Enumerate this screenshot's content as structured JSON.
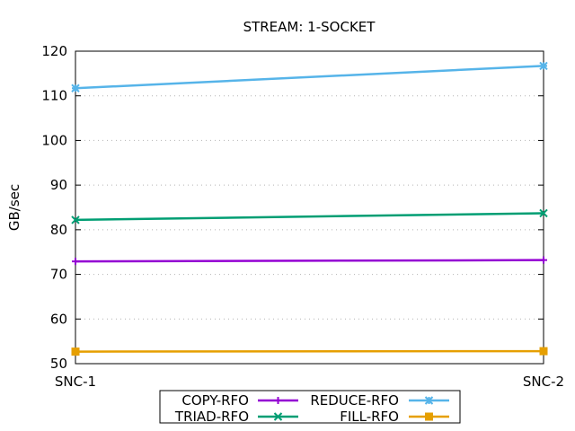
{
  "chart_data": {
    "type": "line",
    "title": "STREAM: 1-SOCKET",
    "xlabel": "",
    "ylabel": "GB/sec",
    "categories": [
      "SNC-1",
      "SNC-2"
    ],
    "ylim": [
      50,
      120
    ],
    "yticks": [
      50,
      60,
      70,
      80,
      90,
      100,
      110,
      120
    ],
    "grid": "horizontal dotted",
    "legend_position": "bottom",
    "series": [
      {
        "name": "COPY-RFO",
        "values": [
          72.9,
          73.2
        ],
        "color": "#9400d3",
        "marker": "plus"
      },
      {
        "name": "TRIAD-RFO",
        "values": [
          82.2,
          83.7
        ],
        "color": "#009e73",
        "marker": "cross"
      },
      {
        "name": "REDUCE-RFO",
        "values": [
          111.7,
          116.7
        ],
        "color": "#56b4e9",
        "marker": "star"
      },
      {
        "name": "FILL-RFO",
        "values": [
          52.7,
          52.8
        ],
        "color": "#e69f00",
        "marker": "square"
      }
    ]
  }
}
